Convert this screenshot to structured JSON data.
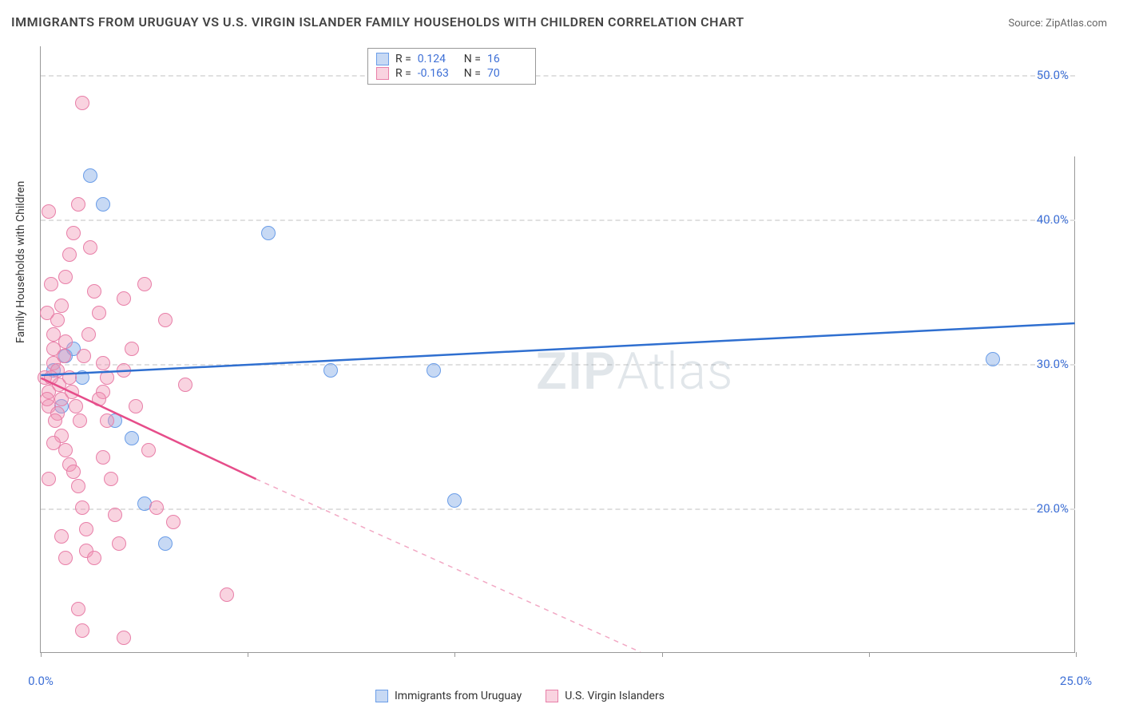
{
  "title": "IMMIGRANTS FROM URUGUAY VS U.S. VIRGIN ISLANDER FAMILY HOUSEHOLDS WITH CHILDREN CORRELATION CHART",
  "source": "Source: ZipAtlas.com",
  "watermark": "ZIPAtlas",
  "y_axis_label": "Family Households with Children",
  "chart": {
    "type": "scatter",
    "xlim": [
      0,
      25
    ],
    "ylim": [
      10,
      52
    ],
    "x_ticks": [
      0,
      5,
      10,
      15,
      20,
      25
    ],
    "x_tick_labels": [
      "0.0%",
      "",
      "",
      "",
      "",
      "25.0%"
    ],
    "y_ticks": [
      20,
      30,
      40,
      50
    ],
    "y_tick_labels": [
      "20.0%",
      "30.0%",
      "40.0%",
      "50.0%"
    ],
    "grid_color": "#e0e0e0",
    "background_color": "#ffffff",
    "axis_color": "#999999",
    "tick_label_color": "#3d6fd6",
    "tick_label_fontsize": 15,
    "series": [
      {
        "name": "Immigrants from Uruguay",
        "color_fill": "rgba(130,170,230,0.45)",
        "color_stroke": "#6a9de8",
        "marker_radius": 9,
        "r_value": "0.124",
        "n_value": "16",
        "trend": {
          "x1": 0,
          "y1": 29.2,
          "x2": 25,
          "y2": 32.8,
          "color": "#2f6fd0",
          "width": 2.5,
          "dash": "none"
        },
        "points": [
          [
            0.3,
            29.5
          ],
          [
            0.6,
            30.5
          ],
          [
            0.8,
            31.0
          ],
          [
            1.0,
            29.0
          ],
          [
            1.2,
            43.0
          ],
          [
            1.5,
            41.0
          ],
          [
            1.8,
            26.0
          ],
          [
            2.2,
            24.8
          ],
          [
            2.5,
            20.3
          ],
          [
            3.0,
            17.5
          ],
          [
            5.5,
            39.0
          ],
          [
            7.0,
            29.5
          ],
          [
            9.5,
            29.5
          ],
          [
            10.0,
            20.5
          ],
          [
            23.0,
            30.3
          ],
          [
            0.5,
            27.0
          ]
        ]
      },
      {
        "name": "U.S. Virgin Islanders",
        "color_fill": "rgba(240,150,180,0.42)",
        "color_stroke": "#e87fa8",
        "marker_radius": 9,
        "r_value": "-0.163",
        "n_value": "70",
        "trend_solid": {
          "x1": 0,
          "y1": 29.0,
          "x2": 5.2,
          "y2": 22.0,
          "color": "#e64d8a",
          "width": 2.5
        },
        "trend_dash": {
          "x1": 5.2,
          "y1": 22.0,
          "x2": 14.5,
          "y2": 10.0,
          "color": "#f2a8c4",
          "width": 1.5
        },
        "points": [
          [
            0.1,
            29.0
          ],
          [
            0.2,
            27.0
          ],
          [
            0.2,
            28.0
          ],
          [
            0.3,
            30.0
          ],
          [
            0.3,
            31.0
          ],
          [
            0.3,
            32.0
          ],
          [
            0.4,
            33.0
          ],
          [
            0.4,
            26.5
          ],
          [
            0.5,
            27.5
          ],
          [
            0.5,
            25.0
          ],
          [
            0.5,
            34.0
          ],
          [
            0.6,
            36.0
          ],
          [
            0.6,
            24.0
          ],
          [
            0.7,
            23.0
          ],
          [
            0.7,
            37.5
          ],
          [
            0.8,
            39.0
          ],
          [
            0.8,
            22.5
          ],
          [
            0.9,
            41.0
          ],
          [
            0.9,
            21.5
          ],
          [
            1.0,
            48.0
          ],
          [
            1.0,
            20.0
          ],
          [
            1.1,
            18.5
          ],
          [
            1.1,
            17.0
          ],
          [
            1.2,
            38.0
          ],
          [
            1.3,
            35.0
          ],
          [
            1.4,
            33.5
          ],
          [
            1.5,
            30.0
          ],
          [
            1.5,
            28.0
          ],
          [
            1.6,
            26.0
          ],
          [
            1.7,
            22.0
          ],
          [
            1.8,
            19.5
          ],
          [
            1.9,
            17.5
          ],
          [
            2.0,
            34.5
          ],
          [
            2.0,
            29.5
          ],
          [
            2.2,
            31.0
          ],
          [
            2.3,
            27.0
          ],
          [
            2.5,
            35.5
          ],
          [
            2.6,
            24.0
          ],
          [
            2.8,
            20.0
          ],
          [
            3.0,
            33.0
          ],
          [
            3.2,
            19.0
          ],
          [
            3.5,
            28.5
          ],
          [
            0.2,
            40.5
          ],
          [
            0.4,
            29.5
          ],
          [
            0.6,
            31.5
          ],
          [
            0.15,
            33.5
          ],
          [
            0.25,
            35.5
          ],
          [
            0.35,
            26.0
          ],
          [
            0.45,
            28.5
          ],
          [
            0.55,
            30.5
          ],
          [
            0.15,
            27.5
          ],
          [
            0.25,
            29.0
          ],
          [
            0.9,
            13.0
          ],
          [
            1.0,
            11.5
          ],
          [
            1.3,
            16.5
          ],
          [
            1.5,
            23.5
          ],
          [
            4.5,
            14.0
          ],
          [
            2.0,
            11.0
          ],
          [
            0.7,
            29.0
          ],
          [
            0.75,
            28.0
          ],
          [
            0.85,
            27.0
          ],
          [
            0.95,
            26.0
          ],
          [
            1.05,
            30.5
          ],
          [
            1.15,
            32.0
          ],
          [
            0.5,
            18.0
          ],
          [
            0.6,
            16.5
          ],
          [
            0.2,
            22.0
          ],
          [
            0.3,
            24.5
          ],
          [
            1.4,
            27.5
          ],
          [
            1.6,
            29.0
          ]
        ]
      }
    ]
  },
  "legend_top": {
    "rows": [
      {
        "swatch_fill": "rgba(130,170,230,0.45)",
        "swatch_stroke": "#6a9de8",
        "r": "0.124",
        "n": "16"
      },
      {
        "swatch_fill": "rgba(240,150,180,0.42)",
        "swatch_stroke": "#e87fa8",
        "r": "-0.163",
        "n": "70"
      }
    ]
  },
  "legend_bottom": {
    "items": [
      {
        "swatch_fill": "rgba(130,170,230,0.45)",
        "swatch_stroke": "#6a9de8",
        "label": "Immigrants from Uruguay"
      },
      {
        "swatch_fill": "rgba(240,150,180,0.42)",
        "swatch_stroke": "#e87fa8",
        "label": "U.S. Virgin Islanders"
      }
    ]
  }
}
